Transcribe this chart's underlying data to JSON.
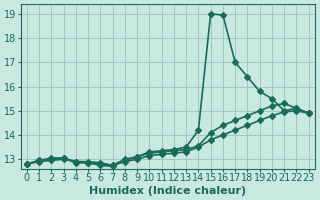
{
  "xlabel": "Humidex (Indice chaleur)",
  "ylabel": "",
  "bg_color": "#c8e8e0",
  "grid_color": "#a0c8c0",
  "line_color": "#1a6b5a",
  "xlim": [
    -0.5,
    23.5
  ],
  "ylim": [
    12.6,
    19.4
  ],
  "xticks": [
    0,
    1,
    2,
    3,
    4,
    5,
    6,
    7,
    8,
    9,
    10,
    11,
    12,
    13,
    14,
    15,
    16,
    17,
    18,
    19,
    20,
    21,
    22,
    23
  ],
  "yticks": [
    13,
    14,
    15,
    16,
    17,
    18,
    19
  ],
  "line1_x": [
    0,
    1,
    2,
    3,
    4,
    5,
    6,
    7,
    8,
    9,
    10,
    11,
    12,
    13,
    14,
    15,
    16,
    17,
    18,
    19,
    20,
    21,
    22,
    23
  ],
  "line1_y": [
    12.8,
    12.95,
    13.05,
    13.05,
    12.85,
    12.85,
    12.75,
    12.7,
    12.95,
    13.1,
    13.3,
    13.35,
    13.4,
    13.5,
    14.2,
    19.0,
    18.95,
    17.0,
    16.4,
    15.8,
    15.5,
    15.0,
    15.1,
    14.9
  ],
  "line2_x": [
    0,
    1,
    2,
    3,
    4,
    5,
    6,
    7,
    8,
    9,
    10,
    11,
    12,
    13,
    14,
    15,
    16,
    17,
    18,
    19,
    20,
    21,
    22,
    23
  ],
  "line2_y": [
    12.8,
    12.95,
    13.0,
    13.05,
    12.9,
    12.9,
    12.85,
    12.75,
    13.0,
    13.1,
    13.25,
    13.3,
    13.35,
    13.4,
    13.55,
    14.1,
    14.4,
    14.6,
    14.8,
    15.0,
    15.2,
    15.3,
    15.1,
    14.9
  ],
  "line3_x": [
    0,
    1,
    2,
    3,
    4,
    5,
    6,
    7,
    8,
    9,
    10,
    11,
    12,
    13,
    14,
    15,
    16,
    17,
    18,
    19,
    20,
    21,
    22,
    23
  ],
  "line3_y": [
    12.8,
    12.9,
    12.95,
    13.0,
    12.9,
    12.85,
    12.8,
    12.75,
    12.9,
    13.0,
    13.15,
    13.2,
    13.25,
    13.3,
    13.5,
    13.8,
    14.0,
    14.2,
    14.4,
    14.6,
    14.8,
    14.95,
    15.0,
    14.9
  ],
  "marker_size": 3,
  "line_width": 1.2,
  "xlabel_fontsize": 8,
  "tick_fontsize": 7
}
